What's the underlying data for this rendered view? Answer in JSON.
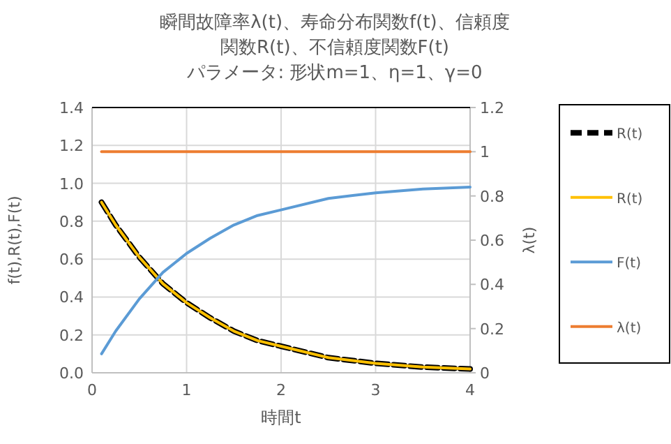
{
  "chart_data": {
    "type": "line",
    "title": "瞬間故障率λ(t)、寿命分布関数f(t)、信頼度関数R(t)、不信頼度関数F(t)",
    "subtitle": "パラメータ: 形状m=1、η=1、γ=0",
    "xlabel": "時間t",
    "ylabel": "f(t),R(t),F(t)",
    "y2label": "λ(t)",
    "x": [
      0.1,
      0.25,
      0.5,
      0.75,
      1,
      1.25,
      1.5,
      1.75,
      2,
      2.5,
      3,
      3.5,
      4
    ],
    "series": [
      {
        "name": "R(t)",
        "color": "#000000",
        "line_style": "dashed",
        "values": [
          0.9,
          0.78,
          0.61,
          0.47,
          0.37,
          0.29,
          0.22,
          0.17,
          0.14,
          0.08,
          0.05,
          0.03,
          0.02
        ]
      },
      {
        "name": "R(t)",
        "color": "#ffc000",
        "values": [
          0.9,
          0.78,
          0.61,
          0.47,
          0.37,
          0.29,
          0.22,
          0.17,
          0.14,
          0.08,
          0.05,
          0.03,
          0.02
        ]
      },
      {
        "name": "F(t)",
        "color": "#5b9bd5",
        "values": [
          0.1,
          0.22,
          0.39,
          0.53,
          0.63,
          0.71,
          0.78,
          0.83,
          0.86,
          0.92,
          0.95,
          0.97,
          0.98
        ]
      },
      {
        "name": "λ(t)",
        "color": "#ed7d31",
        "axis": "y2",
        "values": [
          1,
          1,
          1,
          1,
          1,
          1,
          1,
          1,
          1,
          1,
          1,
          1,
          1
        ]
      }
    ],
    "xlim": [
      0,
      4
    ],
    "xticks": [
      0,
      1,
      2,
      3,
      4
    ],
    "ylim": [
      0,
      1.4
    ],
    "yticks": [
      {
        "value": 0,
        "label": "0.0"
      },
      0.2,
      0.4,
      0.6,
      0.8,
      {
        "value": 1,
        "label": "1.0"
      },
      1.2,
      1.4
    ],
    "y2lim": [
      0,
      1.2
    ],
    "y2ticks": [
      0,
      0.2,
      0.4,
      0.6,
      0.8,
      1,
      1.2
    ],
    "grid": true,
    "legend": "right"
  }
}
